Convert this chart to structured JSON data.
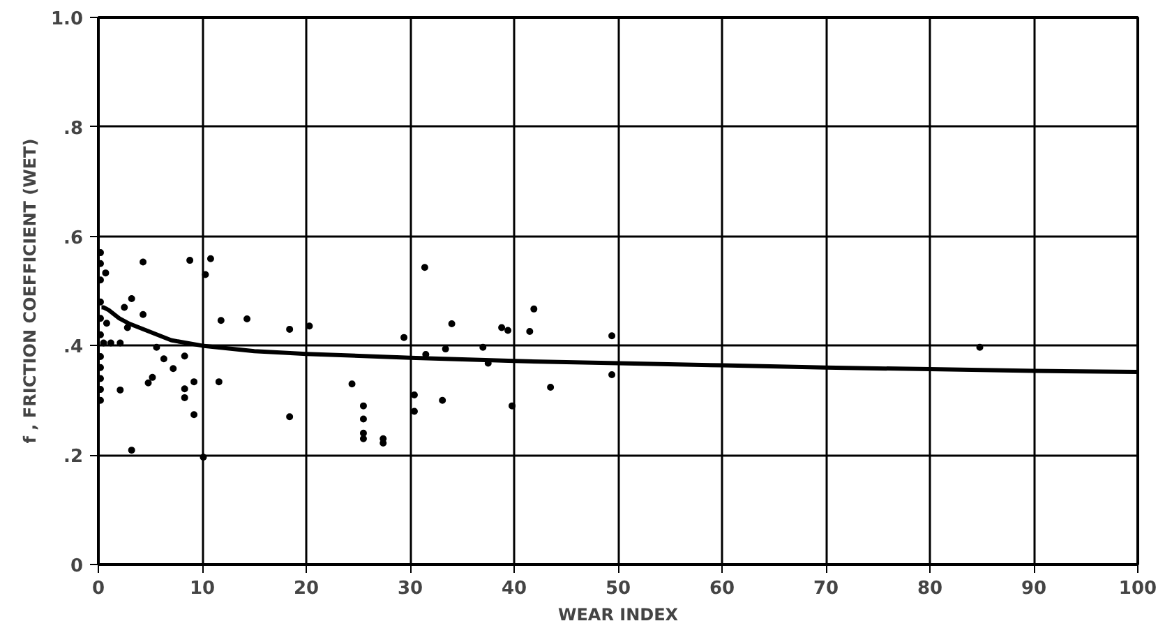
{
  "chart_data": {
    "type": "scatter",
    "xlabel": "WEAR INDEX",
    "ylabel": "f , FRICTION COEFFICIENT (WET)",
    "xlim": [
      0,
      100
    ],
    "ylim": [
      0,
      1.0
    ],
    "xticks": [
      0,
      10,
      20,
      30,
      40,
      50,
      60,
      70,
      80,
      90,
      100
    ],
    "yticks": [
      0,
      {
        "value": 0.2,
        "label": ".2"
      },
      {
        "value": 0.4,
        "label": ".4"
      },
      {
        "value": 0.6,
        "label": ".6"
      },
      {
        "value": 0.8,
        "label": ".8"
      },
      {
        "value": 1.0,
        "label": "1.0"
      }
    ],
    "grid": true,
    "series": [
      {
        "marker": "circle",
        "color": "#000000",
        "x": [
          0.2,
          0.2,
          0.2,
          0.2,
          0.2,
          0.2,
          0.2,
          0.2,
          0.2,
          0.2,
          0.2,
          0.7,
          0.8,
          0.5,
          1.2,
          2.1,
          2.5,
          2.8,
          3.2,
          4.3,
          4.3,
          5.6,
          6.3,
          7.2,
          5.2,
          4.8,
          2.1,
          8.3,
          8.3,
          8.3,
          3.2,
          9.2,
          9.2,
          10.1,
          8.8,
          10.8,
          10.3,
          11.8,
          14.3,
          11.6,
          18.4,
          20.3,
          34,
          29.4,
          24.4,
          25.5,
          25.5,
          25.5,
          25.5,
          27.4,
          27.4,
          18.4,
          30.4,
          30.4,
          33.1,
          33.4,
          31.5,
          31.4,
          41.9,
          38.8,
          41.5,
          39.4,
          37,
          37.5,
          43.5,
          39.8,
          49.4,
          49.4,
          84.8
        ],
        "values": [
          0.57,
          0.55,
          0.52,
          0.48,
          0.45,
          0.42,
          0.38,
          0.36,
          0.34,
          0.32,
          0.3,
          0.533,
          0.441,
          0.405,
          0.405,
          0.405,
          0.47,
          0.433,
          0.486,
          0.553,
          0.457,
          0.397,
          0.376,
          0.358,
          0.342,
          0.332,
          0.319,
          0.381,
          0.321,
          0.305,
          0.209,
          0.274,
          0.334,
          0.196,
          0.556,
          0.559,
          0.53,
          0.446,
          0.449,
          0.334,
          0.43,
          0.436,
          0.44,
          0.415,
          0.33,
          0.29,
          0.266,
          0.24,
          0.23,
          0.23,
          0.222,
          0.27,
          0.31,
          0.28,
          0.3,
          0.394,
          0.384,
          0.543,
          0.467,
          0.433,
          0.426,
          0.428,
          0.397,
          0.368,
          0.324,
          0.29,
          0.418,
          0.347,
          0.397
        ]
      },
      {
        "type": "line",
        "marker": "none",
        "color": "#000000",
        "x": [
          0.3,
          0.5,
          1,
          2,
          3,
          5,
          7,
          10,
          15,
          20,
          30,
          40,
          50,
          60,
          70,
          80,
          90,
          100
        ],
        "values": [
          0.47,
          0.47,
          0.465,
          0.45,
          0.44,
          0.425,
          0.41,
          0.4,
          0.39,
          0.385,
          0.378,
          0.372,
          0.368,
          0.364,
          0.36,
          0.357,
          0.354,
          0.352
        ]
      }
    ]
  }
}
